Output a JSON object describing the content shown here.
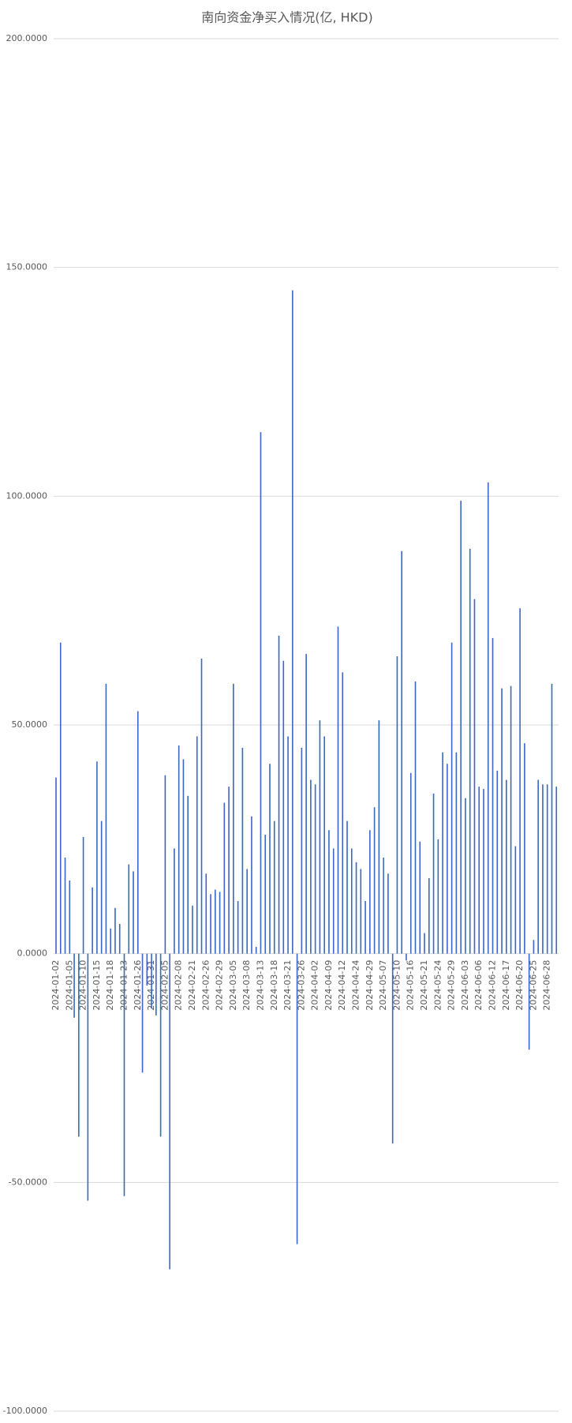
{
  "chart_data": {
    "type": "bar",
    "title": "南向资金净买入情况(亿, HKD)",
    "categories": [
      "2024-01-02",
      null,
      null,
      "2024-01-05",
      null,
      null,
      "2024-01-10",
      null,
      null,
      "2024-01-15",
      null,
      null,
      "2024-01-18",
      null,
      null,
      "2024-01-23",
      null,
      null,
      "2024-01-26",
      null,
      null,
      "2024-01-31",
      null,
      null,
      "2024-02-05",
      null,
      null,
      "2024-02-08",
      null,
      null,
      "2024-02-21",
      null,
      null,
      "2024-02-26",
      null,
      null,
      "2024-02-29",
      null,
      null,
      "2024-03-05",
      null,
      null,
      "2024-03-08",
      null,
      null,
      "2024-03-13",
      null,
      null,
      "2024-03-18",
      null,
      null,
      "2024-03-21",
      null,
      null,
      "2024-03-26",
      null,
      null,
      "2024-04-02",
      null,
      null,
      "2024-04-09",
      null,
      null,
      "2024-04-12",
      null,
      null,
      "2024-04-24",
      null,
      null,
      "2024-04-29",
      null,
      null,
      "2024-05-07",
      null,
      null,
      "2024-05-10",
      null,
      null,
      "2024-05-16",
      null,
      null,
      "2024-05-21",
      null,
      null,
      "2024-05-24",
      null,
      null,
      "2024-05-29",
      null,
      null,
      "2024-06-03",
      null,
      null,
      "2024-06-06",
      null,
      null,
      "2024-06-12",
      null,
      null,
      "2024-06-17",
      null,
      null,
      "2024-06-20",
      null,
      null,
      "2024-06-25",
      null,
      null,
      "2024-06-28",
      null,
      null
    ],
    "values": [
      38.5,
      68,
      21,
      16,
      -14,
      -40,
      25.5,
      -54,
      14.5,
      42,
      29,
      59,
      5.5,
      10,
      6.5,
      -53,
      19.5,
      18,
      53,
      -26,
      -7,
      -12,
      -13.5,
      -40,
      39,
      -69,
      23,
      45.5,
      42.5,
      34.5,
      10.5,
      47.5,
      64.5,
      17.5,
      13,
      14,
      13.5,
      33,
      36.5,
      59,
      11.5,
      45,
      18.5,
      30,
      1.5,
      114,
      26,
      41.5,
      29,
      69.5,
      64,
      47.5,
      145,
      -63.5,
      45,
      65.5,
      38,
      37,
      51,
      47.5,
      27,
      23,
      71.5,
      61.5,
      29,
      23,
      20,
      18.5,
      11.5,
      27,
      32,
      51,
      21,
      17.5,
      -41.5,
      65,
      88,
      -1.5,
      39.5,
      59.5,
      24.5,
      4.5,
      16.5,
      35,
      25,
      44,
      41.5,
      68,
      44,
      99,
      34,
      88.5,
      77.5,
      36.5,
      36,
      103,
      69,
      40,
      58,
      38,
      58.5,
      23.5,
      75.5,
      46,
      -21,
      3,
      38,
      37,
      37,
      59,
      36.5
    ],
    "color": "#3a66c4",
    "ylim": [
      -100,
      200
    ],
    "yticks": [
      {
        "value": -100,
        "label": "-100.0000"
      },
      {
        "value": -50,
        "label": "-50.0000"
      },
      {
        "value": 0,
        "label": "0.0000"
      },
      {
        "value": 50,
        "label": "50.0000"
      },
      {
        "value": 100,
        "label": "100.0000"
      },
      {
        "value": 150,
        "label": "150.0000"
      },
      {
        "value": 200,
        "label": "200.0000"
      }
    ],
    "grid": true
  }
}
